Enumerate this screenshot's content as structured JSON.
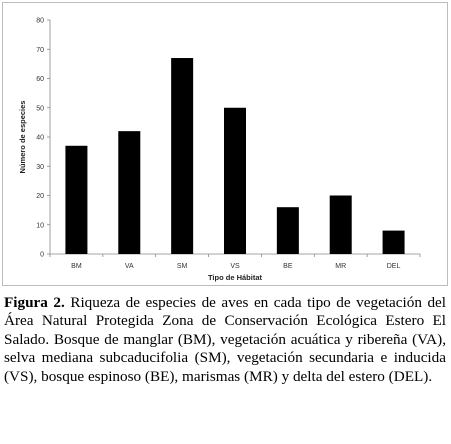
{
  "chart_data": {
    "type": "bar",
    "categories": [
      "BM",
      "VA",
      "SM",
      "VS",
      "BE",
      "MR",
      "DEL"
    ],
    "values": [
      37,
      42,
      67,
      50,
      16,
      20,
      8
    ],
    "xlabel": "Tipo de Hábitat",
    "ylabel": "Número de especies",
    "ylim": [
      0,
      80
    ],
    "yticks": [
      0,
      10,
      20,
      30,
      40,
      50,
      60,
      70,
      80
    ],
    "grid": false,
    "legend": "none",
    "bar_color": "#000000"
  },
  "caption": {
    "label": "Figura 2.",
    "text": " Riqueza de especies de aves en cada tipo de vegetación del Área Natural Protegida Zona de Conservación Ecológica Estero El Salado. Bosque de manglar (BM), vegetación acuática y ribereña (VA), selva mediana subcaducifolia (SM), vegetación secundaria e inducida (VS), bosque espinoso (BE), marismas (MR) y delta del estero (DEL)."
  }
}
